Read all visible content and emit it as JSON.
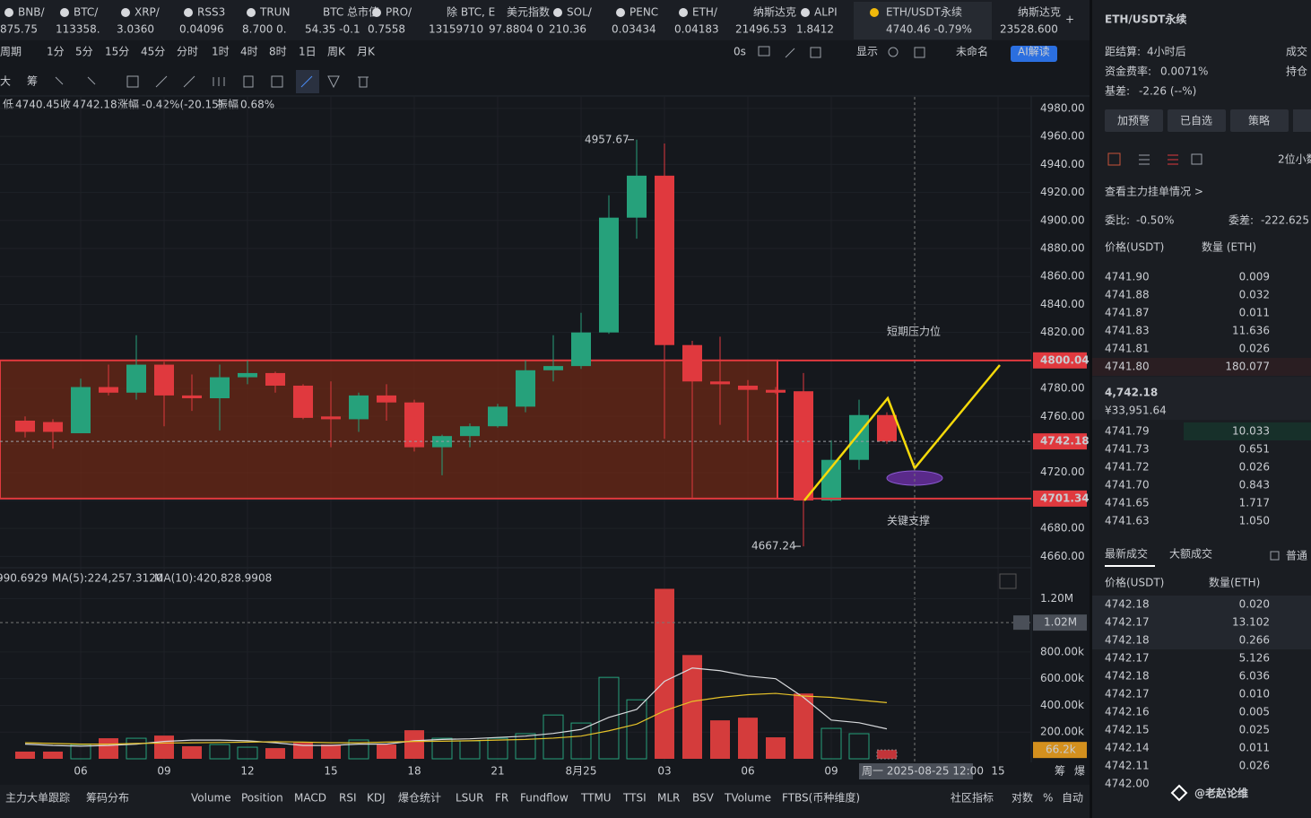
{
  "tickers": [
    {
      "name": "BNB/",
      "price": "875.75",
      "color": "#c9b458"
    },
    {
      "name": "BTC/",
      "price": "113358.",
      "color": "#2ebd85"
    },
    {
      "name": "XRP/",
      "price": "3.0360",
      "color": "#f0494f"
    },
    {
      "name": "RSS3",
      "price": "0.04096",
      "color": "#f0494f"
    },
    {
      "name": "TRUN",
      "price": "8.700 0.",
      "color": "#f0494f"
    },
    {
      "name": "BTC 总市值",
      "price": "54.35 -0.1",
      "color": "#f0494f"
    },
    {
      "name": "PRO/",
      "price": "0.7558",
      "color": "#f0494f"
    },
    {
      "name": "除 BTC, E",
      "price": "13159710",
      "color": "#8a8f98"
    },
    {
      "name": "美元指数",
      "price": "97.8804 0",
      "color": "#8a8f98"
    },
    {
      "name": "SOL/",
      "price": "210.36",
      "color": "#2ebd85"
    },
    {
      "name": "PENC",
      "price": "0.03434",
      "color": "#2ebd85"
    },
    {
      "name": "ETH/",
      "price": "0.04183",
      "color": "#f0494f"
    },
    {
      "name": "纳斯达克",
      "price": "21496.53",
      "color": "#d0d3d8"
    },
    {
      "name": "ALPI",
      "price": "1.8412",
      "color": "#f0494f"
    },
    {
      "name": "ETH/USDT永续",
      "price": "4740.46  -0.79%",
      "color": "#f0494f"
    },
    {
      "name": "纳斯达克",
      "price": "23528.600",
      "color": "#f0494f"
    }
  ],
  "periods": [
    "周期",
    "1分",
    "5分",
    "15分",
    "45分",
    "分时",
    "1时",
    "4时",
    "8时",
    "1日",
    "周K",
    "月K"
  ],
  "active_period": 6,
  "toolbar_right": [
    "0s",
    "显示",
    "未命名",
    "AI解读"
  ],
  "tools": [
    "大",
    "筹"
  ],
  "ohlc_info": [
    "低",
    "4740.45",
    "收",
    "4742.18",
    "涨幅",
    "-0.42%(-20.15)",
    "振幅",
    "0.68%"
  ],
  "volume_legend_prefix": "990.6929",
  "chart_data": [
    {
      "type": "candlestick",
      "grid": true,
      "up_color": "#26a17b",
      "down_color": "#e0393e",
      "categories": [
        null,
        null,
        "06",
        null,
        null,
        "09",
        null,
        null,
        "12",
        null,
        null,
        "15",
        null,
        null,
        "18",
        null,
        null,
        "21",
        null,
        null,
        "8月25",
        null,
        null,
        "03",
        null,
        null,
        "06",
        null,
        null,
        "09",
        null,
        null,
        null,
        null,
        null,
        "15"
      ],
      "open": [
        4757,
        4756,
        4748,
        4781,
        4777,
        4797,
        4775,
        4773,
        4788,
        4791,
        4782,
        4760,
        4758,
        4775,
        4770,
        4738,
        4746,
        4753,
        4767,
        4793,
        4796,
        4820,
        4902,
        4932,
        4811,
        4785,
        4782,
        4779,
        4778,
        4700,
        4729,
        4761,
        null,
        null,
        null,
        null
      ],
      "high": [
        4760,
        4758,
        4787,
        4797,
        4818,
        4799,
        4790,
        4797,
        4800,
        4792,
        4783,
        4785,
        4777,
        4783,
        4772,
        4747,
        4755,
        4769,
        4800,
        4818,
        4834,
        4918,
        4957.67,
        4955,
        4814,
        4817,
        4786,
        4781,
        4791,
        4743,
        4772,
        4763,
        null,
        null,
        null,
        null
      ],
      "low": [
        4745,
        4737,
        4748,
        4775,
        4772,
        4753,
        4764,
        4750,
        4783,
        4777,
        4758,
        4738,
        4749,
        4757,
        4735,
        4718,
        4738,
        4752,
        4763,
        4785,
        4794,
        4819,
        4887,
        4744,
        4702,
        4754,
        4742,
        4776,
        4667.24,
        4699,
        4722,
        4740.45,
        null,
        null,
        null,
        null
      ],
      "close": [
        4749,
        4749,
        4781,
        4777,
        4797,
        4775,
        4773,
        4788,
        4791,
        4782,
        4759,
        4758,
        4775,
        4770,
        4738,
        4746,
        4753,
        4767,
        4793,
        4796,
        4820,
        4902,
        4932,
        4811,
        4785,
        4783,
        4779,
        4777,
        4700,
        4729,
        4761,
        4742.18,
        null,
        null,
        null,
        null
      ],
      "ylim": [
        4650,
        4987
      ],
      "yticks": [
        {
          "value": 4660,
          "label": "4660.00"
        },
        {
          "value": 4680,
          "label": "4680.00"
        },
        {
          "value": 4700,
          "label": "4700.00"
        },
        {
          "value": 4720,
          "label": "4720.00"
        },
        {
          "value": 4740,
          "label": "4740.00"
        },
        {
          "value": 4760,
          "label": "4760.00"
        },
        {
          "value": 4780,
          "label": "4780.00"
        },
        {
          "value": 4800,
          "label": "4800.00"
        },
        {
          "value": 4820,
          "label": "4820.00"
        },
        {
          "value": 4840,
          "label": "4840.00"
        },
        {
          "value": 4860,
          "label": "4860.00"
        },
        {
          "value": 4880,
          "label": "4880.00"
        },
        {
          "value": 4900,
          "label": "4900.00"
        },
        {
          "value": 4920,
          "label": "4920.00"
        },
        {
          "value": 4940,
          "label": "4940.00"
        },
        {
          "value": 4960,
          "label": "4960.00"
        },
        {
          "value": 4980,
          "label": "4980.00"
        }
      ],
      "price_lines": [
        {
          "value": 4800.04,
          "color": "#e0393e"
        },
        {
          "value": 4742.18,
          "color": "#e0393e"
        },
        {
          "value": 4701.34,
          "color": "#e0393e"
        }
      ],
      "max_label": 4957.67,
      "min_label": 4667.24,
      "resistance_text": "短期压力位",
      "support_text": "关键支撑",
      "crosshair_label": "周一 2025-08-25 12:00"
    },
    {
      "type": "volume",
      "values": [
        54000,
        54000,
        107000,
        154000,
        154000,
        174000,
        94000,
        107000,
        87000,
        80000,
        120000,
        107000,
        141000,
        107000,
        214000,
        154000,
        134000,
        154000,
        188000,
        328000,
        268000,
        610000,
        442000,
        1273000,
        777000,
        288000,
        308000,
        161000,
        489000,
        228000,
        188000,
        66200,
        null,
        null,
        null,
        null
      ],
      "value_labels": [
        null,
        null,
        null,
        null,
        null,
        null,
        null,
        null,
        null,
        null,
        null,
        null,
        null,
        null,
        null,
        null,
        null,
        null,
        null,
        null,
        null,
        null,
        null,
        null,
        null,
        null,
        null,
        null,
        null,
        null,
        null,
        "66.2k",
        null,
        null,
        null,
        null
      ],
      "series": [
        {
          "name": "MA(5):224,257.3120",
          "color": "#d8dadd",
          "values": [
            110000,
            100000,
            95000,
            100000,
            110000,
            130000,
            140000,
            140000,
            135000,
            120000,
            100000,
            100000,
            110000,
            110000,
            135000,
            145000,
            150000,
            160000,
            170000,
            190000,
            220000,
            310000,
            370000,
            580000,
            680000,
            660000,
            620000,
            600000,
            460000,
            290000,
            270000,
            224257.312,
            null,
            null,
            null,
            null
          ]
        },
        {
          "name": "MA(10):420,828.9908",
          "color": "#e6c229",
          "values": [
            120000,
            115000,
            110000,
            110000,
            115000,
            118000,
            120000,
            122000,
            125000,
            128000,
            125000,
            120000,
            120000,
            125000,
            130000,
            132000,
            135000,
            140000,
            145000,
            155000,
            170000,
            210000,
            260000,
            360000,
            430000,
            460000,
            480000,
            490000,
            470000,
            460000,
            440000,
            420828.9908,
            null,
            null,
            null,
            null
          ]
        }
      ],
      "ylim": [
        0,
        1350000
      ],
      "yticks": [
        {
          "value": 200000,
          "label": "200.00k"
        },
        {
          "value": 400000,
          "label": "400.00k"
        },
        {
          "value": 600000,
          "label": "600.00k"
        },
        {
          "value": 800000,
          "label": "800.00k"
        },
        {
          "value": 1200000,
          "label": "1.20M"
        }
      ],
      "crosshair": {
        "value": 1020000,
        "label": "1.02M"
      }
    }
  ],
  "side_panel": {
    "title": "ETH/USDT永续",
    "settle_label": "距结算:",
    "settle_value": "4小时后",
    "funding_label": "资金费率:",
    "funding_value": "0.0071%",
    "basis_label": "基差:",
    "basis_value": "-2.26 (--%)",
    "right_cut": [
      "成交",
      "持仓"
    ],
    "buttons": [
      "加预警",
      "已自选",
      "策略"
    ],
    "decimals": "2位小数",
    "depth_link": "查看主力挂单情况 >",
    "ratio_label": "委比:",
    "ratio_value": "-0.50%",
    "diff_label": "委差:",
    "diff_value": "-222.625",
    "col_price": "价格(USDT)",
    "col_qty": "数量 (ETH)",
    "asks": [
      [
        "4741.90",
        "0.009"
      ],
      [
        "4741.88",
        "0.032"
      ],
      [
        "4741.87",
        "0.011"
      ],
      [
        "4741.83",
        "11.636"
      ],
      [
        "4741.81",
        "0.026"
      ],
      [
        "4741.80",
        "180.077"
      ]
    ],
    "last_price": "4,742.18",
    "last_cny": "¥33,951.64",
    "bids": [
      [
        "4741.79",
        "10.033"
      ],
      [
        "4741.73",
        "0.651"
      ],
      [
        "4741.72",
        "0.026"
      ],
      [
        "4741.70",
        "0.843"
      ],
      [
        "4741.65",
        "1.717"
      ],
      [
        "4741.63",
        "1.050"
      ]
    ],
    "trade_tabs": [
      "最新成交",
      "大额成交",
      "普通"
    ],
    "trade_col_price": "价格(USDT)",
    "trade_col_qty": "数量(ETH)",
    "trades": [
      {
        "price": "4742.18",
        "qty": "0.020",
        "side": "buy"
      },
      {
        "price": "4742.17",
        "qty": "13.102",
        "side": "sell"
      },
      {
        "price": "4742.18",
        "qty": "0.266",
        "side": "buy"
      },
      {
        "price": "4742.17",
        "qty": "5.126",
        "side": "sell"
      },
      {
        "price": "4742.18",
        "qty": "6.036",
        "side": "buy"
      },
      {
        "price": "4742.17",
        "qty": "0.010",
        "side": "buy"
      },
      {
        "price": "4742.16",
        "qty": "0.005",
        "side": "buy"
      },
      {
        "price": "4742.15",
        "qty": "0.025",
        "side": "buy"
      },
      {
        "price": "4742.14",
        "qty": "0.011",
        "side": "buy"
      },
      {
        "price": "4742.11",
        "qty": "0.026",
        "side": "buy"
      },
      {
        "price": "4742.00",
        "qty": "",
        "side": "buy"
      }
    ]
  },
  "axis_corner": [
    "筹",
    "爆"
  ],
  "bottom_left": [
    "主力大单跟踪",
    "筹码分布"
  ],
  "indicators": [
    "Volume",
    "Position",
    "MACD",
    "RSI",
    "KDJ",
    "爆仓统计",
    "LSUR",
    "FR",
    "Fundflow",
    "TTMU",
    "TTSI",
    "MLR",
    "BSV",
    "TVolume",
    "FTBS(币种维度)"
  ],
  "active_indicator": 0,
  "bottom_right": [
    "社区指标",
    "对数",
    "%",
    "自动"
  ],
  "watermark": "@老赵论维"
}
